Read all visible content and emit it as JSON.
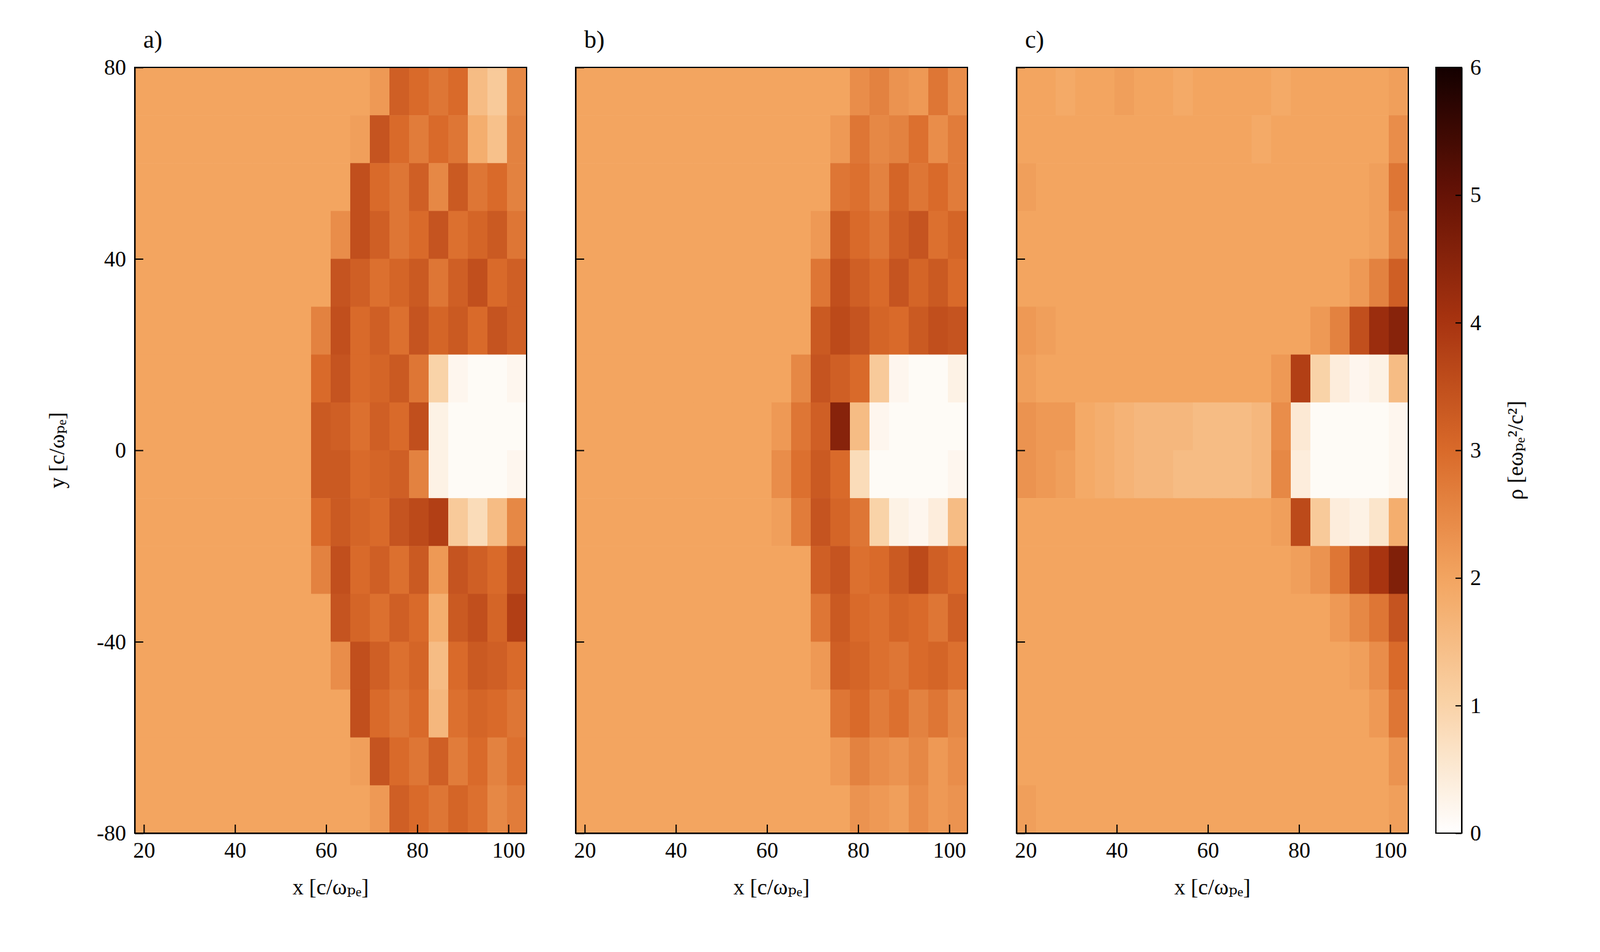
{
  "chart_data": [
    {
      "type": "heatmap",
      "title": "a)",
      "x_label": "x [c/ωₚₑ]",
      "y_label": "y [c/ωₚₑ]",
      "tick_labels": true,
      "xlim": [
        18,
        104
      ],
      "ylim": [
        -80,
        80
      ],
      "xticks": [
        20,
        40,
        60,
        80,
        100
      ],
      "yticks": [
        -80,
        -40,
        0,
        40,
        80
      ],
      "x": [
        20.15,
        24.45,
        28.75,
        33.05,
        37.35,
        41.65,
        45.95,
        50.25,
        54.55,
        58.85,
        63.15,
        67.45,
        71.75,
        76.05,
        80.35,
        84.65,
        88.95,
        93.25,
        97.55,
        101.85
      ],
      "y": [
        75,
        65,
        55,
        45,
        35,
        25,
        15,
        5,
        -5,
        -15,
        -25,
        -35,
        -45,
        -55,
        -65,
        -75
      ],
      "values": [
        [
          2,
          2,
          2,
          2,
          2,
          2,
          2,
          2,
          2,
          2,
          2,
          2,
          2.2,
          3.2,
          3.0,
          2.8,
          3.0,
          1.5,
          1.2,
          2.5
        ],
        [
          2,
          2,
          2,
          2,
          2,
          2,
          2,
          2,
          2,
          2,
          2,
          2.1,
          3.4,
          3.0,
          2.7,
          3.0,
          2.8,
          1.8,
          1.4,
          2.6
        ],
        [
          2,
          2,
          2,
          2,
          2,
          2,
          2,
          2,
          2,
          2,
          2,
          3.5,
          3.0,
          2.8,
          3.2,
          2.5,
          3.3,
          2.8,
          3.0,
          2.6
        ],
        [
          2,
          2,
          2,
          2,
          2,
          2,
          2,
          2,
          2,
          2,
          2.4,
          3.5,
          3.2,
          2.8,
          3.0,
          3.4,
          2.9,
          3.1,
          3.3,
          2.8
        ],
        [
          2,
          2,
          2,
          2,
          2,
          2,
          2,
          2,
          2,
          2,
          3.4,
          3.2,
          2.9,
          3.1,
          3.3,
          2.8,
          3.2,
          3.5,
          3.0,
          3.2
        ],
        [
          2,
          2,
          2,
          2,
          2,
          2,
          2,
          2,
          2,
          2.6,
          3.5,
          3.0,
          3.2,
          2.9,
          3.4,
          3.1,
          3.3,
          3.0,
          3.4,
          3.2
        ],
        [
          2,
          2,
          2,
          2,
          2,
          2,
          2,
          2,
          2,
          3.0,
          3.4,
          3.0,
          3.1,
          3.3,
          2.8,
          1.0,
          0.2,
          0.1,
          0.1,
          0.2
        ],
        [
          2,
          2,
          2,
          2,
          2,
          2,
          2,
          2,
          2,
          3.3,
          3.2,
          2.9,
          3.2,
          3.0,
          3.5,
          0.3,
          0.1,
          0.1,
          0.1,
          0.1
        ],
        [
          2,
          2,
          2,
          2,
          2,
          2,
          2,
          2,
          2,
          3.3,
          3.3,
          3.0,
          3.1,
          3.2,
          2.6,
          0.3,
          0.1,
          0.1,
          0.1,
          0.2
        ],
        [
          2,
          2,
          2,
          2,
          2,
          2,
          2,
          2,
          2,
          3.0,
          3.3,
          3.1,
          3.0,
          3.4,
          3.6,
          3.8,
          1.2,
          0.8,
          1.5,
          2.5
        ],
        [
          2,
          2,
          2,
          2,
          2,
          2,
          2,
          2,
          2,
          2.6,
          3.5,
          3.0,
          3.2,
          2.9,
          3.3,
          2.2,
          3.4,
          3.2,
          3.0,
          3.5
        ],
        [
          2,
          2,
          2,
          2,
          2,
          2,
          2,
          2,
          2,
          2,
          3.4,
          3.1,
          2.9,
          3.2,
          3.0,
          1.8,
          3.3,
          3.5,
          3.1,
          3.8
        ],
        [
          2,
          2,
          2,
          2,
          2,
          2,
          2,
          2,
          2,
          2,
          2.4,
          3.5,
          3.2,
          2.9,
          3.1,
          1.5,
          3.0,
          3.3,
          3.2,
          3.0
        ],
        [
          2,
          2,
          2,
          2,
          2,
          2,
          2,
          2,
          2,
          2,
          2,
          3.5,
          3.0,
          2.8,
          3.0,
          1.6,
          2.9,
          3.1,
          3.0,
          2.8
        ],
        [
          2,
          2,
          2,
          2,
          2,
          2,
          2,
          2,
          2,
          2,
          2,
          2.1,
          3.4,
          3.0,
          2.8,
          3.2,
          2.7,
          3.0,
          2.6,
          2.9
        ],
        [
          2,
          2,
          2,
          2,
          2,
          2,
          2,
          2,
          2,
          2,
          2,
          2,
          2.2,
          3.2,
          3.0,
          2.8,
          3.1,
          2.9,
          2.5,
          2.7
        ]
      ]
    },
    {
      "type": "heatmap",
      "title": "b)",
      "x_label": "x [c/ωₚₑ]",
      "tick_labels": "x",
      "xlim": [
        18,
        104
      ],
      "ylim": [
        -80,
        80
      ],
      "xticks": [
        20,
        40,
        60,
        80,
        100
      ],
      "yticks": [
        -80,
        -40,
        0,
        40,
        80
      ],
      "x": [
        20.15,
        24.45,
        28.75,
        33.05,
        37.35,
        41.65,
        45.95,
        50.25,
        54.55,
        58.85,
        63.15,
        67.45,
        71.75,
        76.05,
        80.35,
        84.65,
        88.95,
        93.25,
        97.55,
        101.85
      ],
      "y": [
        75,
        65,
        55,
        45,
        35,
        25,
        15,
        5,
        -5,
        -15,
        -25,
        -35,
        -45,
        -55,
        -65,
        -75
      ],
      "values": [
        [
          2,
          2,
          2,
          2,
          2,
          2,
          2,
          2,
          2,
          2,
          2,
          2,
          2,
          2,
          2.4,
          2.6,
          2.3,
          2.2,
          2.8,
          2.4
        ],
        [
          2,
          2,
          2,
          2,
          2,
          2,
          2,
          2,
          2,
          2,
          2,
          2,
          2,
          2.2,
          2.8,
          2.5,
          2.6,
          2.9,
          2.4,
          2.7
        ],
        [
          2,
          2,
          2,
          2,
          2,
          2,
          2,
          2,
          2,
          2,
          2,
          2,
          2,
          2.8,
          2.9,
          2.6,
          3.1,
          2.8,
          3.0,
          2.7
        ],
        [
          2,
          2,
          2,
          2,
          2,
          2,
          2,
          2,
          2,
          2,
          2,
          2,
          2.2,
          3.3,
          3.0,
          2.8,
          3.2,
          3.4,
          2.9,
          3.1
        ],
        [
          2,
          2,
          2,
          2,
          2,
          2,
          2,
          2,
          2,
          2,
          2,
          2,
          2.8,
          3.5,
          3.2,
          3.0,
          3.4,
          3.1,
          3.3,
          3.0
        ],
        [
          2,
          2,
          2,
          2,
          2,
          2,
          2,
          2,
          2,
          2,
          2,
          2,
          3.3,
          3.6,
          3.4,
          3.1,
          3.0,
          3.3,
          3.5,
          3.4
        ],
        [
          2,
          2,
          2,
          2,
          2,
          2,
          2,
          2,
          2,
          2,
          2,
          2.5,
          3.4,
          3.2,
          3.0,
          1.2,
          0.2,
          0.1,
          0.1,
          0.3
        ],
        [
          2,
          2,
          2,
          2,
          2,
          2,
          2,
          2,
          2,
          2,
          2.2,
          2.8,
          3.2,
          4.5,
          1.5,
          0.2,
          0.1,
          0.1,
          0.1,
          0.1
        ],
        [
          2,
          2,
          2,
          2,
          2,
          2,
          2,
          2,
          2,
          2,
          2.4,
          2.9,
          3.3,
          3.0,
          0.8,
          0.1,
          0.1,
          0.1,
          0.1,
          0.2
        ],
        [
          2,
          2,
          2,
          2,
          2,
          2,
          2,
          2,
          2,
          2,
          2.1,
          2.7,
          3.4,
          3.1,
          2.8,
          1.0,
          0.3,
          0.2,
          0.4,
          1.5
        ],
        [
          2,
          2,
          2,
          2,
          2,
          2,
          2,
          2,
          2,
          2,
          2,
          2,
          3.2,
          3.4,
          2.9,
          3.0,
          3.3,
          3.6,
          3.2,
          3.0
        ],
        [
          2,
          2,
          2,
          2,
          2,
          2,
          2,
          2,
          2,
          2,
          2,
          2,
          2.8,
          3.3,
          3.0,
          2.9,
          3.1,
          3.0,
          2.8,
          3.2
        ],
        [
          2,
          2,
          2,
          2,
          2,
          2,
          2,
          2,
          2,
          2,
          2,
          2,
          2.2,
          3.2,
          3.1,
          2.9,
          2.8,
          3.0,
          3.1,
          2.9
        ],
        [
          2,
          2,
          2,
          2,
          2,
          2,
          2,
          2,
          2,
          2,
          2,
          2,
          2,
          2.8,
          3.0,
          2.7,
          2.9,
          2.6,
          2.8,
          2.5
        ],
        [
          2,
          2,
          2,
          2,
          2,
          2,
          2,
          2,
          2,
          2,
          2,
          2,
          2,
          2.2,
          2.6,
          2.4,
          2.3,
          2.5,
          2.2,
          2.4
        ],
        [
          2,
          2,
          2,
          2,
          2,
          2,
          2,
          2,
          2,
          2,
          2,
          2,
          2,
          2,
          2.3,
          2.2,
          2.1,
          2.4,
          2.2,
          2.3
        ]
      ]
    },
    {
      "type": "heatmap",
      "title": "c)",
      "x_label": "x [c/ωₚₑ]",
      "tick_labels": "x",
      "xlim": [
        18,
        104
      ],
      "ylim": [
        -80,
        80
      ],
      "xticks": [
        20,
        40,
        60,
        80,
        100
      ],
      "yticks": [
        -80,
        -40,
        0,
        40,
        80
      ],
      "x": [
        20.15,
        24.45,
        28.75,
        33.05,
        37.35,
        41.65,
        45.95,
        50.25,
        54.55,
        58.85,
        63.15,
        67.45,
        71.75,
        76.05,
        80.35,
        84.65,
        88.95,
        93.25,
        97.55,
        101.85
      ],
      "y": [
        75,
        65,
        55,
        45,
        35,
        25,
        15,
        5,
        -5,
        -15,
        -25,
        -35,
        -45,
        -55,
        -65,
        -75
      ],
      "values": [
        [
          2,
          2,
          1.9,
          2,
          2,
          2.1,
          2,
          2,
          1.9,
          2,
          2,
          2,
          2,
          1.9,
          2,
          2,
          2,
          2,
          2,
          2.1
        ],
        [
          2,
          2,
          2,
          2,
          2,
          2,
          2,
          2,
          2,
          2,
          2,
          2,
          1.9,
          2,
          2,
          2,
          2,
          2,
          2,
          2.4
        ],
        [
          2.1,
          2,
          2,
          2,
          2,
          2,
          2,
          2,
          2,
          2,
          2,
          2,
          2,
          2,
          2,
          2,
          2,
          2,
          2.1,
          2.8
        ],
        [
          2,
          2,
          2,
          2,
          2,
          2,
          2,
          2,
          2,
          2,
          2,
          2,
          2,
          2,
          2,
          2,
          2,
          2,
          2.1,
          2.6
        ],
        [
          2,
          2,
          2,
          2,
          2,
          2,
          2,
          2,
          2,
          2,
          2,
          2,
          2,
          2,
          2,
          2,
          2,
          2.2,
          2.6,
          3.2
        ],
        [
          2.2,
          2.1,
          2,
          2,
          2,
          2,
          2,
          2,
          2,
          2,
          2,
          2,
          2,
          2,
          2,
          2.2,
          2.6,
          3.5,
          4.2,
          4.5
        ],
        [
          2.1,
          2,
          2,
          2,
          2,
          2,
          2,
          2,
          2,
          2,
          2,
          2,
          2,
          2.2,
          3.8,
          1.0,
          0.4,
          0.2,
          0.3,
          1.5
        ],
        [
          2.3,
          2.2,
          2.2,
          1.9,
          1.8,
          1.7,
          1.6,
          1.6,
          1.6,
          1.5,
          1.5,
          1.5,
          1.6,
          2.4,
          0.5,
          0.1,
          0.1,
          0.1,
          0.1,
          0.2
        ],
        [
          2.3,
          2.2,
          2.1,
          1.9,
          1.8,
          1.7,
          1.6,
          1.6,
          1.5,
          1.5,
          1.5,
          1.5,
          1.6,
          2.5,
          0.4,
          0.1,
          0.1,
          0.1,
          0.1,
          0.2
        ],
        [
          2,
          2,
          2,
          2,
          2,
          2,
          2,
          2,
          2,
          2,
          2,
          2,
          2,
          2.1,
          3.6,
          1.2,
          0.4,
          0.3,
          0.6,
          1.8
        ],
        [
          2,
          2,
          2,
          2,
          2,
          2,
          2,
          2,
          2,
          2,
          2,
          2,
          2,
          2,
          2.1,
          2.3,
          2.8,
          3.6,
          4.0,
          4.6
        ],
        [
          2,
          2,
          2,
          2,
          2,
          2,
          2,
          2,
          2,
          2,
          2,
          2,
          2,
          2,
          2,
          2,
          2.2,
          2.5,
          2.8,
          3.4
        ],
        [
          2,
          2,
          2,
          2,
          2,
          2,
          2,
          2,
          2,
          2,
          2,
          2,
          2,
          2,
          2,
          2,
          2,
          2.1,
          2.4,
          3.0
        ],
        [
          2,
          2,
          2,
          2,
          2,
          2,
          2,
          2,
          2,
          2,
          2,
          2,
          2,
          2,
          2,
          2,
          2,
          2,
          2.2,
          2.8
        ],
        [
          2,
          2,
          2,
          2,
          2,
          2,
          2,
          2,
          2,
          2,
          2,
          2,
          2,
          2,
          2,
          2,
          2,
          2,
          2,
          2.3
        ],
        [
          2.1,
          2,
          2,
          2,
          2,
          2,
          2,
          2,
          2,
          2,
          2,
          2,
          2,
          2,
          2,
          2,
          2,
          2,
          2,
          2.1
        ]
      ]
    },
    {
      "type": "colorbar",
      "title": "ρ [eωₚₑ²/c²]",
      "ylim": [
        0,
        6
      ],
      "yticks": [
        0,
        1,
        2,
        3,
        4,
        5,
        6
      ]
    }
  ]
}
